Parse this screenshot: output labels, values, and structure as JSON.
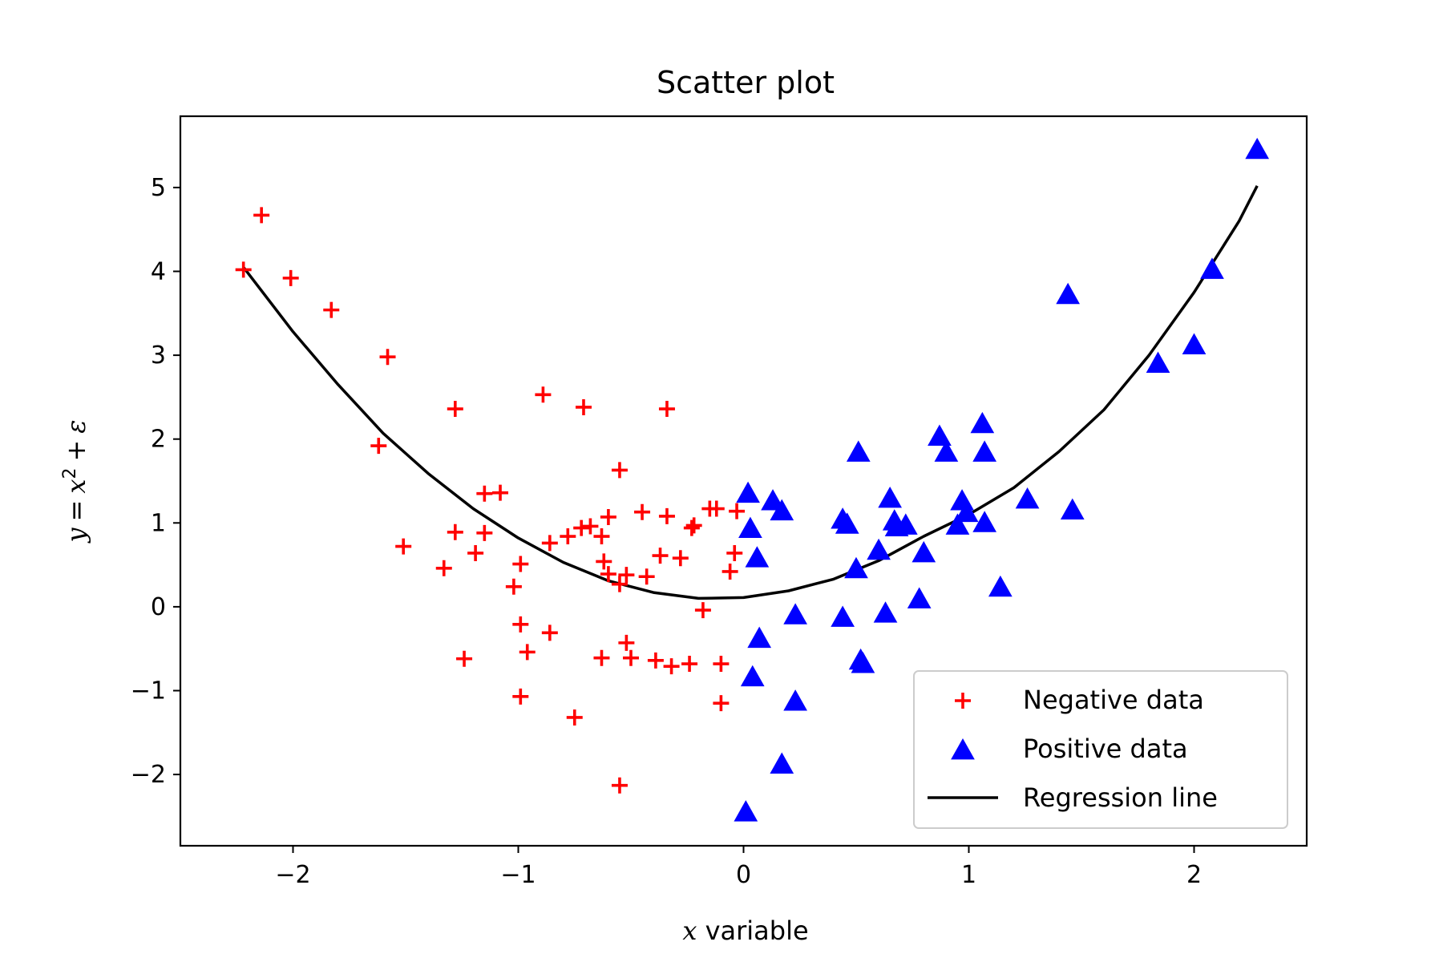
{
  "chart_data": {
    "type": "scatter",
    "title": "Scatter plot",
    "xlabel": {
      "var": "x",
      "rest": " variable"
    },
    "ylabel": {
      "var": "y",
      "eq": "=",
      "base": "x",
      "sup": "2",
      "plus": "+",
      "err": "ε"
    },
    "xlim": [
      -2.5,
      2.5
    ],
    "ylim": [
      -2.85,
      5.85
    ],
    "xticks": [
      -2,
      -1,
      0,
      1,
      2
    ],
    "xtick_labels": [
      "−2",
      "−1",
      "0",
      "1",
      "2"
    ],
    "yticks": [
      -2,
      -1,
      0,
      1,
      2,
      3,
      4,
      5
    ],
    "ytick_labels": [
      "−2",
      "−1",
      "0",
      "1",
      "2",
      "3",
      "4",
      "5"
    ],
    "grid": false,
    "legend_position": "lower-right",
    "colors": {
      "negative": "#ff0000",
      "positive": "#0000ff",
      "line": "#000000"
    },
    "series": [
      {
        "name": "Negative data",
        "marker": "plus",
        "points": [
          [
            -2.22,
            4.02
          ],
          [
            -2.14,
            4.67
          ],
          [
            -2.01,
            3.92
          ],
          [
            -1.83,
            3.54
          ],
          [
            -1.58,
            2.98
          ],
          [
            -1.62,
            1.92
          ],
          [
            -1.51,
            0.72
          ],
          [
            -1.33,
            0.46
          ],
          [
            -1.28,
            2.36
          ],
          [
            -1.28,
            0.89
          ],
          [
            -1.24,
            -0.62
          ],
          [
            -1.19,
            0.64
          ],
          [
            -1.15,
            1.35
          ],
          [
            -1.15,
            0.88
          ],
          [
            -1.08,
            1.36
          ],
          [
            -1.02,
            0.24
          ],
          [
            -0.99,
            0.51
          ],
          [
            -0.99,
            -0.21
          ],
          [
            -0.99,
            -1.07
          ],
          [
            -0.96,
            -0.54
          ],
          [
            -0.89,
            2.53
          ],
          [
            -0.86,
            0.76
          ],
          [
            -0.86,
            -0.31
          ],
          [
            -0.78,
            0.84
          ],
          [
            -0.75,
            -1.32
          ],
          [
            -0.72,
            0.94
          ],
          [
            -0.71,
            2.38
          ],
          [
            -0.68,
            0.96
          ],
          [
            -0.63,
            0.84
          ],
          [
            -0.63,
            -0.61
          ],
          [
            -0.62,
            0.54
          ],
          [
            -0.6,
            1.07
          ],
          [
            -0.6,
            0.39
          ],
          [
            -0.55,
            1.63
          ],
          [
            -0.55,
            0.27
          ],
          [
            -0.55,
            -2.13
          ],
          [
            -0.52,
            0.38
          ],
          [
            -0.52,
            -0.43
          ],
          [
            -0.5,
            -0.61
          ],
          [
            -0.45,
            1.13
          ],
          [
            -0.43,
            0.36
          ],
          [
            -0.39,
            -0.64
          ],
          [
            -0.37,
            0.61
          ],
          [
            -0.34,
            2.36
          ],
          [
            -0.34,
            1.08
          ],
          [
            -0.32,
            -0.71
          ],
          [
            -0.28,
            0.58
          ],
          [
            -0.24,
            -0.68
          ],
          [
            -0.23,
            0.94
          ],
          [
            -0.22,
            0.97
          ],
          [
            -0.18,
            -0.04
          ],
          [
            -0.15,
            1.17
          ],
          [
            -0.12,
            1.17
          ],
          [
            -0.1,
            -0.68
          ],
          [
            -0.1,
            -1.15
          ],
          [
            -0.06,
            0.42
          ],
          [
            -0.04,
            0.64
          ],
          [
            -0.03,
            1.14
          ]
        ]
      },
      {
        "name": "Positive data",
        "marker": "triangle",
        "points": [
          [
            0.01,
            -2.45
          ],
          [
            0.02,
            1.35
          ],
          [
            0.03,
            0.93
          ],
          [
            0.04,
            -0.84
          ],
          [
            0.06,
            0.58
          ],
          [
            0.07,
            -0.38
          ],
          [
            0.13,
            1.26
          ],
          [
            0.17,
            1.14
          ],
          [
            0.17,
            -1.88
          ],
          [
            0.23,
            -0.1
          ],
          [
            0.23,
            -1.13
          ],
          [
            0.44,
            1.04
          ],
          [
            0.44,
            -0.13
          ],
          [
            0.46,
            0.98
          ],
          [
            0.5,
            0.45
          ],
          [
            0.51,
            1.84
          ],
          [
            0.52,
            -0.64
          ],
          [
            0.53,
            -0.68
          ],
          [
            0.6,
            0.67
          ],
          [
            0.63,
            -0.08
          ],
          [
            0.65,
            1.29
          ],
          [
            0.67,
            1.02
          ],
          [
            0.68,
            0.95
          ],
          [
            0.72,
            0.97
          ],
          [
            0.78,
            0.09
          ],
          [
            0.8,
            0.64
          ],
          [
            0.87,
            2.03
          ],
          [
            0.9,
            1.84
          ],
          [
            0.95,
            0.97
          ],
          [
            0.97,
            1.26
          ],
          [
            0.99,
            1.12
          ],
          [
            1.06,
            2.18
          ],
          [
            1.07,
            1.84
          ],
          [
            1.07,
            1.0
          ],
          [
            1.14,
            0.23
          ],
          [
            1.26,
            1.28
          ],
          [
            1.44,
            3.72
          ],
          [
            1.46,
            1.15
          ],
          [
            1.84,
            2.9
          ],
          [
            2.0,
            3.12
          ],
          [
            2.08,
            4.02
          ],
          [
            2.28,
            5.45
          ]
        ]
      },
      {
        "name": "Regression line",
        "marker": "line",
        "points": [
          [
            -2.22,
            4.05
          ],
          [
            -2.0,
            3.28
          ],
          [
            -1.8,
            2.65
          ],
          [
            -1.6,
            2.07
          ],
          [
            -1.4,
            1.59
          ],
          [
            -1.2,
            1.17
          ],
          [
            -1.0,
            0.82
          ],
          [
            -0.8,
            0.53
          ],
          [
            -0.6,
            0.31
          ],
          [
            -0.4,
            0.17
          ],
          [
            -0.2,
            0.1
          ],
          [
            0.0,
            0.11
          ],
          [
            0.2,
            0.19
          ],
          [
            0.4,
            0.33
          ],
          [
            0.6,
            0.55
          ],
          [
            0.8,
            0.84
          ],
          [
            1.0,
            1.1
          ],
          [
            1.2,
            1.42
          ],
          [
            1.4,
            1.85
          ],
          [
            1.6,
            2.35
          ],
          [
            1.8,
            3.0
          ],
          [
            2.0,
            3.75
          ],
          [
            2.2,
            4.6
          ],
          [
            2.28,
            5.02
          ]
        ]
      }
    ]
  }
}
